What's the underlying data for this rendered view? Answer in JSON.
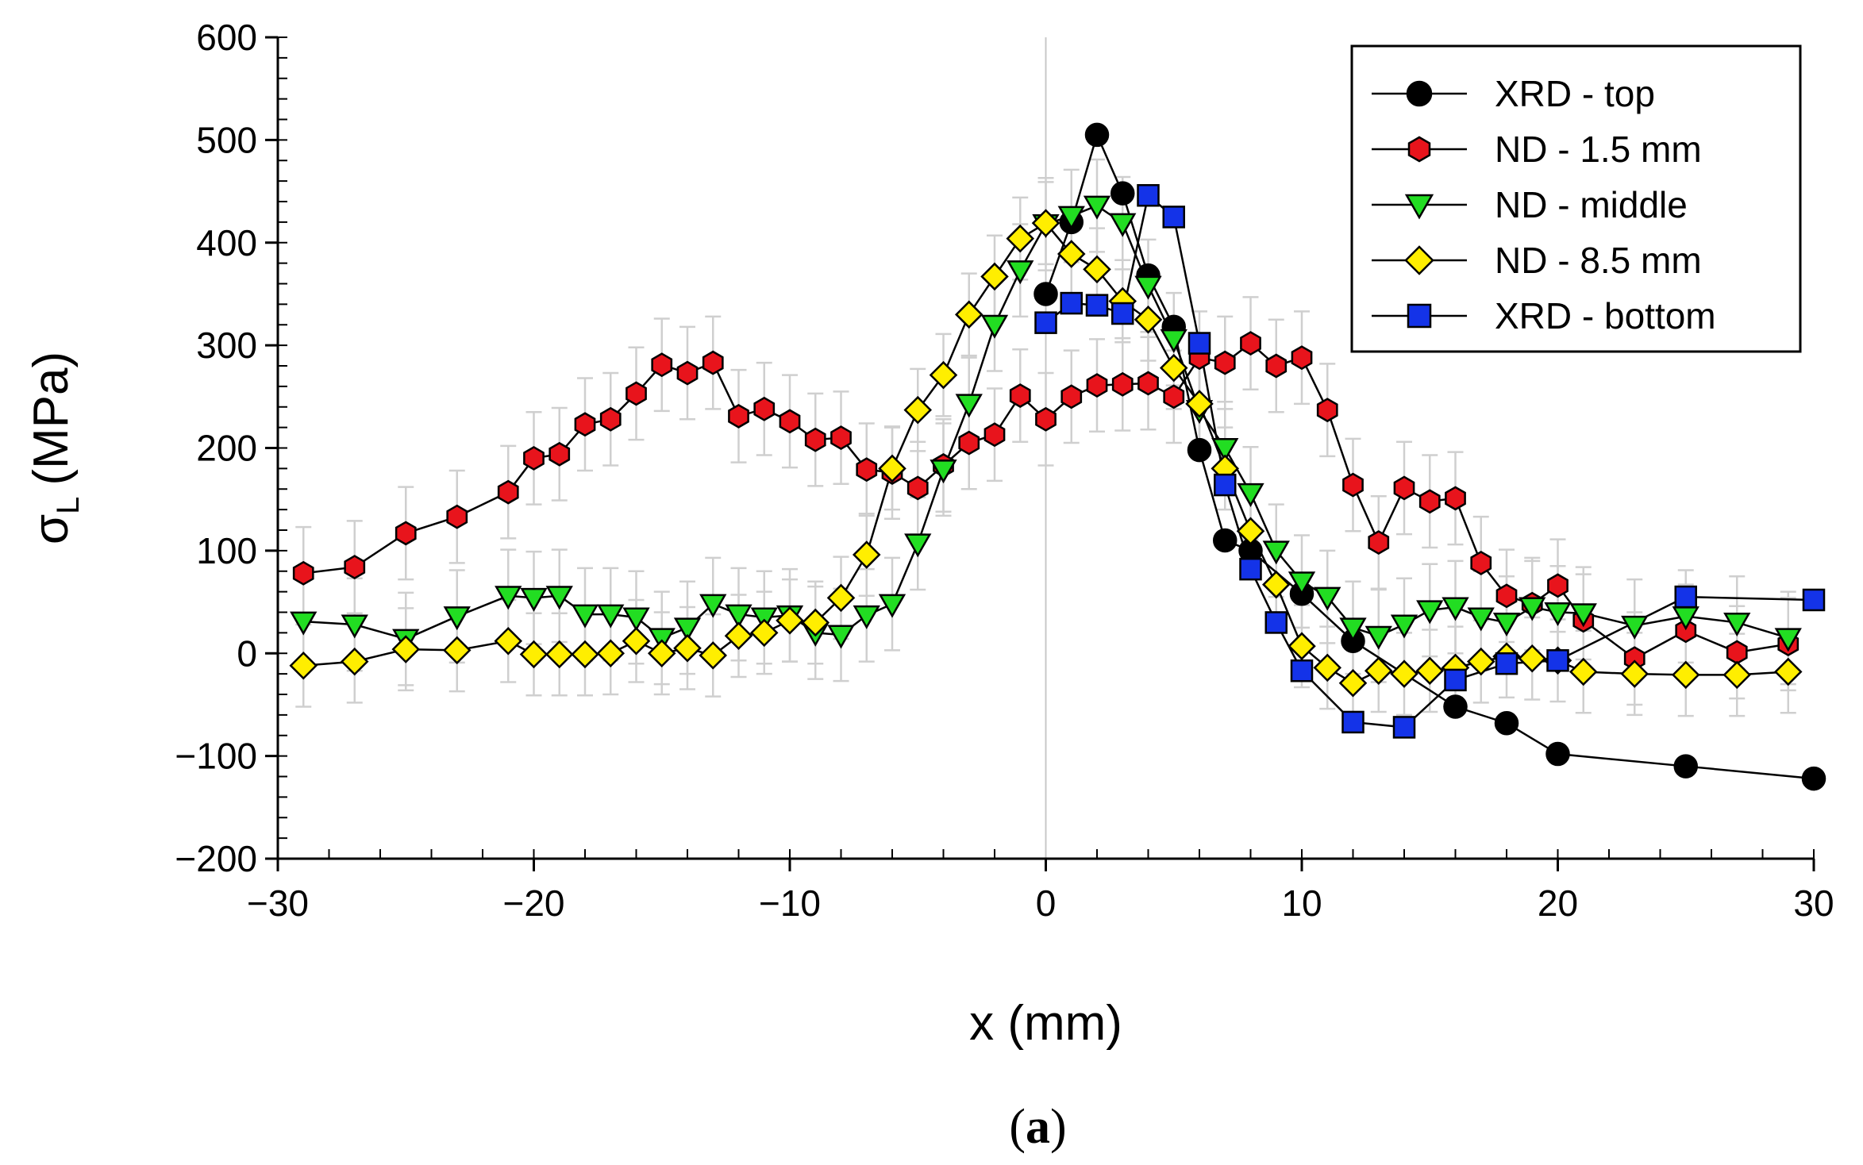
{
  "chart_data": {
    "type": "line",
    "title": "",
    "xlabel": "x (mm)",
    "ylabel_symbol": "σ",
    "ylabel_subscript": "L",
    "ylabel_unit": "(MPa)",
    "caption_open": "(",
    "caption_letter": "a",
    "caption_close": ")",
    "xlim": [
      -30,
      30
    ],
    "ylim": [
      -200,
      600
    ],
    "xticks": [
      -30,
      -20,
      -10,
      0,
      10,
      20,
      30
    ],
    "yticks": [
      -200,
      -100,
      0,
      100,
      200,
      300,
      400,
      500,
      600
    ],
    "xtick_labels": [
      "−30",
      "−20",
      "−10",
      "0",
      "10",
      "20",
      "30"
    ],
    "ytick_labels": [
      "−200",
      "−100",
      "0",
      "100",
      "200",
      "300",
      "400",
      "500",
      "600"
    ],
    "legend_position": "top-right",
    "series": [
      {
        "name": "XRD - top",
        "marker": "circle",
        "color": "#000000",
        "error": 0,
        "points": [
          [
            0,
            350
          ],
          [
            1,
            420
          ],
          [
            2,
            505
          ],
          [
            3,
            448
          ],
          [
            4,
            368
          ],
          [
            5,
            318
          ],
          [
            6,
            198
          ],
          [
            7,
            110
          ],
          [
            8,
            100
          ],
          [
            10,
            58
          ],
          [
            12,
            12
          ],
          [
            16,
            -52
          ],
          [
            18,
            -68
          ],
          [
            20,
            -98
          ],
          [
            25,
            -110
          ],
          [
            30,
            -122
          ]
        ]
      },
      {
        "name": "ND - 1.5 mm",
        "marker": "hexagon",
        "color": "#e8141c",
        "error": 45,
        "points": [
          [
            -29,
            78
          ],
          [
            -27,
            84
          ],
          [
            -25,
            117
          ],
          [
            -23,
            133
          ],
          [
            -21,
            157
          ],
          [
            -20,
            190
          ],
          [
            -19,
            194
          ],
          [
            -18,
            223
          ],
          [
            -17,
            228
          ],
          [
            -16,
            253
          ],
          [
            -15,
            281
          ],
          [
            -14,
            273
          ],
          [
            -13,
            283
          ],
          [
            -12,
            231
          ],
          [
            -11,
            238
          ],
          [
            -10,
            226
          ],
          [
            -9,
            208
          ],
          [
            -8,
            210
          ],
          [
            -7,
            179
          ],
          [
            -6,
            176
          ],
          [
            -5,
            161
          ],
          [
            -4,
            183
          ],
          [
            -3,
            205
          ],
          [
            -2,
            213
          ],
          [
            -1,
            251
          ],
          [
            0,
            228
          ],
          [
            1,
            250
          ],
          [
            2,
            261
          ],
          [
            3,
            262
          ],
          [
            4,
            263
          ],
          [
            5,
            250
          ],
          [
            6,
            288
          ],
          [
            7,
            283
          ],
          [
            8,
            302
          ],
          [
            9,
            280
          ],
          [
            10,
            288
          ],
          [
            11,
            237
          ],
          [
            12,
            164
          ],
          [
            13,
            108
          ],
          [
            14,
            161
          ],
          [
            15,
            148
          ],
          [
            16,
            151
          ],
          [
            17,
            88
          ],
          [
            18,
            56
          ],
          [
            19,
            48
          ],
          [
            20,
            66
          ],
          [
            21,
            32
          ],
          [
            23,
            -5
          ],
          [
            25,
            22
          ],
          [
            27,
            1
          ],
          [
            29,
            9
          ]
        ]
      },
      {
        "name": "ND - middle",
        "marker": "triangle-down",
        "color": "#22dd22",
        "error": 45,
        "points": [
          [
            -29,
            31
          ],
          [
            -27,
            28
          ],
          [
            -25,
            14
          ],
          [
            -23,
            36
          ],
          [
            -21,
            56
          ],
          [
            -20,
            54
          ],
          [
            -19,
            56
          ],
          [
            -18,
            38
          ],
          [
            -17,
            38
          ],
          [
            -16,
            35
          ],
          [
            -15,
            15
          ],
          [
            -14,
            25
          ],
          [
            -13,
            48
          ],
          [
            -12,
            38
          ],
          [
            -11,
            35
          ],
          [
            -10,
            37
          ],
          [
            -9,
            20
          ],
          [
            -8,
            18
          ],
          [
            -7,
            37
          ],
          [
            -6,
            48
          ],
          [
            -5,
            107
          ],
          [
            -4,
            179
          ],
          [
            -3,
            243
          ],
          [
            -2,
            320
          ],
          [
            -1,
            373
          ],
          [
            0,
            418
          ],
          [
            1,
            426
          ],
          [
            2,
            436
          ],
          [
            3,
            419
          ],
          [
            4,
            358
          ],
          [
            5,
            306
          ],
          [
            6,
            237
          ],
          [
            7,
            200
          ],
          [
            8,
            156
          ],
          [
            9,
            100
          ],
          [
            10,
            70
          ],
          [
            11,
            55
          ],
          [
            12,
            25
          ],
          [
            13,
            17
          ],
          [
            14,
            28
          ],
          [
            15,
            42
          ],
          [
            16,
            45
          ],
          [
            17,
            35
          ],
          [
            18,
            30
          ],
          [
            19,
            45
          ],
          [
            20,
            40
          ],
          [
            21,
            39
          ],
          [
            23,
            27
          ],
          [
            25,
            36
          ],
          [
            27,
            30
          ],
          [
            29,
            15
          ]
        ]
      },
      {
        "name": "ND - 8.5 mm",
        "marker": "diamond",
        "color": "#ffee00",
        "error": 40,
        "points": [
          [
            -29,
            -12
          ],
          [
            -27,
            -8
          ],
          [
            -25,
            4
          ],
          [
            -23,
            3
          ],
          [
            -21,
            12
          ],
          [
            -20,
            -1
          ],
          [
            -19,
            -1
          ],
          [
            -18,
            -1
          ],
          [
            -17,
            0
          ],
          [
            -16,
            12
          ],
          [
            -15,
            0
          ],
          [
            -14,
            5
          ],
          [
            -13,
            -2
          ],
          [
            -12,
            17
          ],
          [
            -11,
            20
          ],
          [
            -10,
            32
          ],
          [
            -9,
            30
          ],
          [
            -8,
            54
          ],
          [
            -7,
            96
          ],
          [
            -6,
            180
          ],
          [
            -5,
            237
          ],
          [
            -4,
            271
          ],
          [
            -3,
            330
          ],
          [
            -2,
            367
          ],
          [
            -1,
            404
          ],
          [
            0,
            419
          ],
          [
            1,
            389
          ],
          [
            2,
            374
          ],
          [
            3,
            343
          ],
          [
            4,
            325
          ],
          [
            5,
            278
          ],
          [
            6,
            243
          ],
          [
            7,
            180
          ],
          [
            8,
            119
          ],
          [
            9,
            67
          ],
          [
            10,
            7
          ],
          [
            11,
            -14
          ],
          [
            12,
            -29
          ],
          [
            13,
            -17
          ],
          [
            14,
            -20
          ],
          [
            15,
            -17
          ],
          [
            16,
            -14
          ],
          [
            17,
            -8
          ],
          [
            18,
            -3
          ],
          [
            19,
            -5
          ],
          [
            20,
            -7
          ],
          [
            21,
            -18
          ],
          [
            23,
            -20
          ],
          [
            25,
            -21
          ],
          [
            27,
            -21
          ],
          [
            29,
            -18
          ]
        ]
      },
      {
        "name": "XRD - bottom",
        "marker": "square",
        "color": "#1433e8",
        "error": 0,
        "points": [
          [
            0,
            322
          ],
          [
            1,
            341
          ],
          [
            2,
            339
          ],
          [
            3,
            331
          ],
          [
            4,
            446
          ],
          [
            5,
            425
          ],
          [
            6,
            302
          ],
          [
            7,
            164
          ],
          [
            8,
            82
          ],
          [
            9,
            30
          ],
          [
            10,
            -17
          ],
          [
            12,
            -67
          ],
          [
            14,
            -72
          ],
          [
            16,
            -26
          ],
          [
            18,
            -10
          ],
          [
            20,
            -7
          ],
          [
            25,
            55
          ],
          [
            30,
            52
          ]
        ]
      }
    ]
  }
}
